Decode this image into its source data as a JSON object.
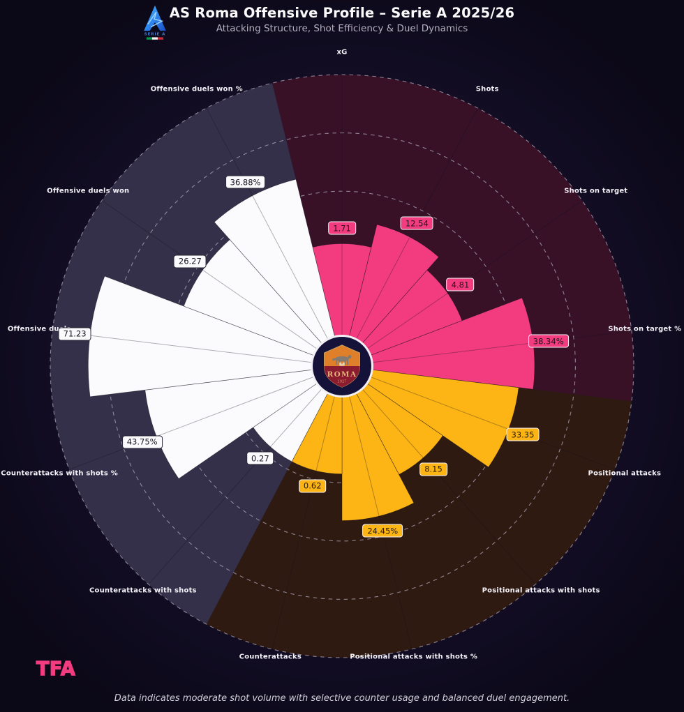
{
  "header": {
    "title": "AS Roma Offensive Profile – Serie A 2025/26",
    "subtitle": "Attacking Structure, Shot Efficiency & Duel Dynamics",
    "league_logo_text": "SERIE A"
  },
  "center_badge": {
    "club": "AS Roma",
    "crest_name": "ROMA",
    "crest_year": "1927"
  },
  "chart_data": {
    "type": "pizza",
    "title": "AS Roma Offensive Profile – Serie A 2025/26",
    "rings_pct": [
      20,
      40,
      60,
      80,
      100
    ],
    "grid": "dashed-circles",
    "legend_position": "none",
    "groups": [
      {
        "id": "shooting",
        "color": "#f33c80",
        "bg": "#381127",
        "box_border": "#f6f3f8",
        "box_text": "#26101c"
      },
      {
        "id": "attacks",
        "color": "#fdb515",
        "bg": "#2f1a11",
        "box_border": "#f6f3f8",
        "box_text": "#261a08"
      },
      {
        "id": "duels",
        "color": "#fbfafc",
        "bg": "#353049",
        "box_border": "#2b2837",
        "box_text": "#17151f"
      }
    ],
    "params": [
      {
        "label": "xG",
        "value": "1.71",
        "value_num": 1.71,
        "scaled_pct": 42,
        "group": "shooting"
      },
      {
        "label": "Shots",
        "value": "12.54",
        "value_num": 12.54,
        "scaled_pct": 50,
        "group": "shooting"
      },
      {
        "label": "Shots on target",
        "value": "4.81",
        "value_num": 4.81,
        "scaled_pct": 44,
        "group": "shooting"
      },
      {
        "label": "Shots on target %",
        "value": "38.34%",
        "value_num": 38.34,
        "scaled_pct": 66,
        "group": "shooting"
      },
      {
        "label": "Positional attacks",
        "value": "33.35",
        "value_num": 33.35,
        "scaled_pct": 61,
        "group": "attacks"
      },
      {
        "label": "Positional attacks with shots",
        "value": "8.15",
        "value_num": 8.15,
        "scaled_pct": 42,
        "group": "attacks"
      },
      {
        "label": "Positional attacks with shots %",
        "value": "24.45%",
        "value_num": 24.45,
        "scaled_pct": 53,
        "group": "attacks"
      },
      {
        "label": "Counterattacks",
        "value": "0.62",
        "value_num": 0.62,
        "scaled_pct": 37,
        "group": "attacks"
      },
      {
        "label": "Counterattacks with shots",
        "value": "0.27",
        "value_num": 0.27,
        "scaled_pct": 37,
        "group": "duels"
      },
      {
        "label": "Counterattacks with shots %",
        "value": "43.75%",
        "value_num": 43.75,
        "scaled_pct": 68,
        "group": "duels"
      },
      {
        "label": "Offensive duels",
        "value": "71.23",
        "value_num": 71.23,
        "scaled_pct": 87,
        "group": "duels"
      },
      {
        "label": "Offensive duels won",
        "value": "26.27",
        "value_num": 26.27,
        "scaled_pct": 58,
        "group": "duels"
      },
      {
        "label": "Offensive duels won %",
        "value": "36.88%",
        "value_num": 36.88,
        "scaled_pct": 66,
        "group": "duels"
      }
    ]
  },
  "footer": {
    "brand": "TFA",
    "note": "Data indicates moderate shot volume with selective counter usage and balanced duel engagement."
  }
}
